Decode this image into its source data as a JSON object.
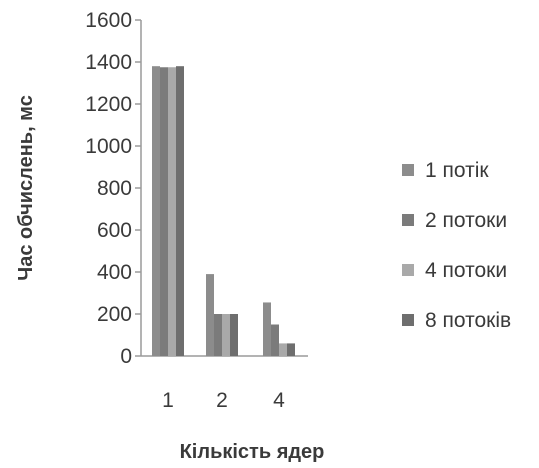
{
  "chart_data": {
    "type": "bar",
    "categories": [
      "1",
      "2",
      "4"
    ],
    "series": [
      {
        "name": "1 потік",
        "values": [
          1380,
          390,
          255
        ],
        "color": "#8c8c8c"
      },
      {
        "name": "2 потоки",
        "values": [
          1375,
          200,
          150
        ],
        "color": "#7b7b7b"
      },
      {
        "name": "4 потоки",
        "values": [
          1375,
          200,
          60
        ],
        "color": "#a9a9a9"
      },
      {
        "name": "8 потоків",
        "values": [
          1380,
          200,
          60
        ],
        "color": "#6e6e6e"
      }
    ],
    "xlabel": "Кількість ядер",
    "ylabel": "Час обчислень, мс",
    "ylim": [
      0,
      1600
    ],
    "yticks": [
      "0",
      "200",
      "400",
      "600",
      "800",
      "1000",
      "1200",
      "1400",
      "1600"
    ],
    "grid": false,
    "legend_position": "right"
  }
}
